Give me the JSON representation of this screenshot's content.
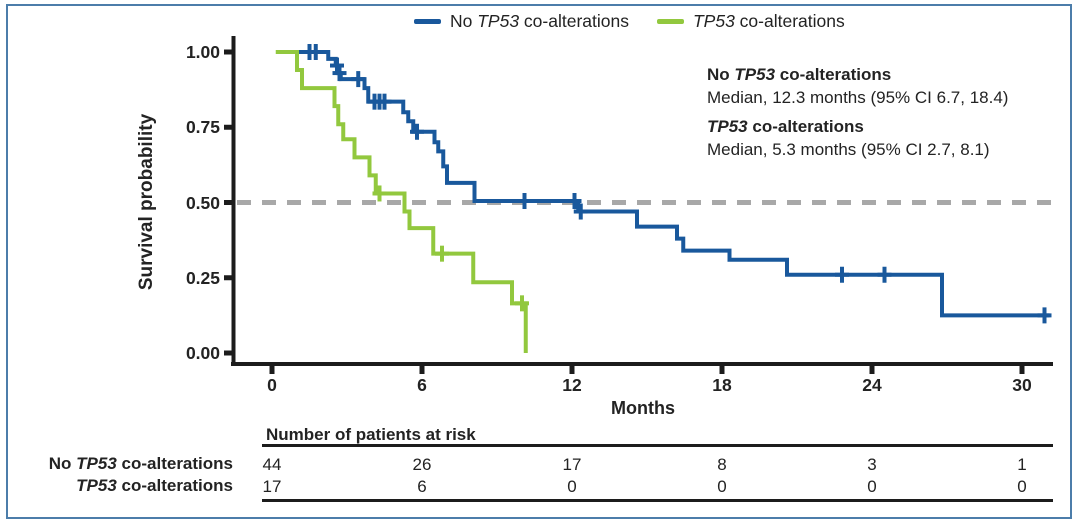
{
  "figure": {
    "border_color": "#4c7daa",
    "background": "#ffffff",
    "text_color": "#232323",
    "axis_color": "#1c1c1c",
    "reference_line_color": "#a8a8a8"
  },
  "legend": {
    "items": [
      {
        "prefix": "No ",
        "gene": "TP53",
        "suffix": " co-alterations",
        "color": "#19589c"
      },
      {
        "prefix": "",
        "gene": "TP53",
        "suffix": " co-alterations",
        "color": "#92c83e"
      }
    ]
  },
  "annotation": {
    "groups": [
      {
        "prefix": "No ",
        "gene": "TP53",
        "suffix": " co-alterations",
        "median_line": "Median, 12.3 months (95% CI 6.7, 18.4)"
      },
      {
        "prefix": "",
        "gene": "TP53",
        "suffix": " co-alterations",
        "median_line": "Median, 5.3 months (95% CI 2.7, 8.1)"
      }
    ]
  },
  "chart_data": {
    "type": "line",
    "subtype": "kaplan-meier-step",
    "title": "",
    "xlabel": "Months",
    "ylabel": "Survival probability",
    "x_ticks": [
      0,
      6,
      12,
      18,
      24,
      30
    ],
    "y_tick_labels": [
      "1.00",
      "0.75",
      "0.50",
      "0.25",
      "0.00"
    ],
    "y_tick_values": [
      1.0,
      0.75,
      0.5,
      0.25,
      0.0
    ],
    "xlim": [
      -1.5,
      31.7
    ],
    "ylim": [
      0.0,
      1.0
    ],
    "grid": false,
    "legend_position": "top-center",
    "reference_line_y": 0.5,
    "series": [
      {
        "name": "No TP53 co-alterations",
        "color": "#19589c",
        "median_months": 12.3,
        "ci95": [
          6.7,
          18.4
        ],
        "steps": [
          [
            0.4,
            1.0
          ],
          [
            2.25,
            0.977
          ],
          [
            2.55,
            0.955
          ],
          [
            2.65,
            0.93
          ],
          [
            2.75,
            0.91
          ],
          [
            3.7,
            0.88
          ],
          [
            3.85,
            0.835
          ],
          [
            5.25,
            0.8
          ],
          [
            5.45,
            0.77
          ],
          [
            5.65,
            0.735
          ],
          [
            6.5,
            0.7
          ],
          [
            6.65,
            0.67
          ],
          [
            6.85,
            0.62
          ],
          [
            7.0,
            0.565
          ],
          [
            8.1,
            0.505
          ],
          [
            12.25,
            0.47
          ],
          [
            14.6,
            0.42
          ],
          [
            16.2,
            0.38
          ],
          [
            16.45,
            0.34
          ],
          [
            18.3,
            0.31
          ],
          [
            20.6,
            0.26
          ],
          [
            26.8,
            0.125
          ]
        ],
        "end": 31.1,
        "censors": [
          [
            1.5,
            1.0
          ],
          [
            1.75,
            1.0
          ],
          [
            2.6,
            0.955
          ],
          [
            2.7,
            0.93
          ],
          [
            3.45,
            0.91
          ],
          [
            4.1,
            0.835
          ],
          [
            4.3,
            0.835
          ],
          [
            4.5,
            0.835
          ],
          [
            5.8,
            0.735
          ],
          [
            10.1,
            0.505
          ],
          [
            12.1,
            0.505
          ],
          [
            12.35,
            0.47
          ],
          [
            22.8,
            0.26
          ],
          [
            24.5,
            0.26
          ],
          [
            30.9,
            0.125
          ]
        ]
      },
      {
        "name": "TP53 co-alterations",
        "color": "#92c83e",
        "median_months": 5.3,
        "ci95": [
          2.7,
          8.1
        ],
        "steps": [
          [
            0.15,
            1.0
          ],
          [
            1.0,
            0.94
          ],
          [
            1.2,
            0.88
          ],
          [
            2.5,
            0.82
          ],
          [
            2.65,
            0.76
          ],
          [
            2.85,
            0.71
          ],
          [
            3.3,
            0.65
          ],
          [
            3.9,
            0.59
          ],
          [
            4.15,
            0.53
          ],
          [
            5.3,
            0.47
          ],
          [
            5.5,
            0.415
          ],
          [
            6.45,
            0.33
          ],
          [
            8.05,
            0.235
          ],
          [
            9.6,
            0.165
          ],
          [
            10.15,
            0.0
          ]
        ],
        "end": 10.15,
        "censors": [
          [
            4.3,
            0.53
          ],
          [
            6.8,
            0.33
          ],
          [
            10.0,
            0.165
          ]
        ]
      }
    ]
  },
  "risk_table": {
    "header": "Number of patients at risk",
    "time_points": [
      0,
      6,
      12,
      18,
      24,
      30
    ],
    "rows": [
      {
        "prefix": "No ",
        "gene": "TP53",
        "suffix": " co-alterations",
        "counts": [
          44,
          26,
          17,
          8,
          3,
          1
        ]
      },
      {
        "prefix": "",
        "gene": "TP53",
        "suffix": " co-alterations",
        "counts": [
          17,
          6,
          0,
          0,
          0,
          0
        ]
      }
    ]
  }
}
